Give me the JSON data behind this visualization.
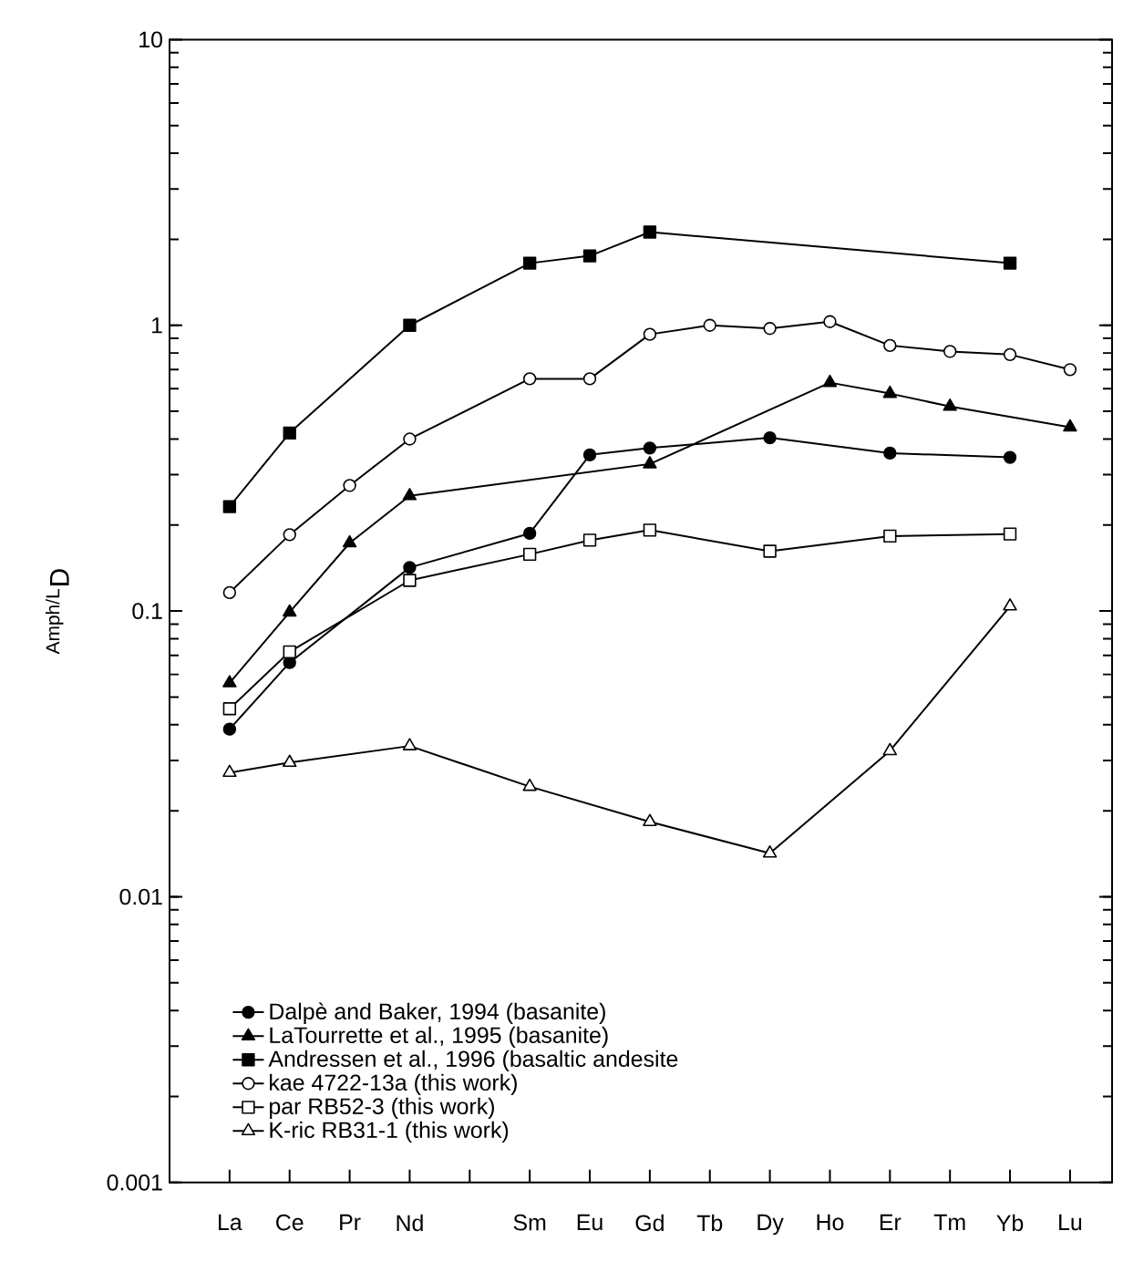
{
  "chart_data": {
    "type": "line",
    "ylabel": "$^{Amph/L}$D",
    "categories": [
      "La",
      "Ce",
      "Pr",
      "Nd",
      null,
      "Sm",
      "Eu",
      "Gd",
      "Tb",
      "Dy",
      "Ho",
      "Er",
      "Tm",
      "Yb",
      "Lu"
    ],
    "log": "y",
    "ylim": [
      0.001,
      10
    ],
    "yticks": [
      0.001,
      0.01,
      0.1,
      1,
      10
    ],
    "grid": false,
    "legend": "bottom left",
    "line_style": "solid",
    "series": [
      {
        "name": "Dalpè and Baker, 1994 (basanite)",
        "color": "#000000",
        "marker": "circle",
        "values": [
          0.0386,
          0.066,
          null,
          0.142,
          null,
          0.187,
          0.352,
          0.372,
          null,
          0.404,
          null,
          0.357,
          null,
          0.345,
          null
        ]
      },
      {
        "name": "LaTourrette et al., 1995 (basanite)",
        "color": "#000000",
        "marker": "triangle",
        "values": [
          0.056,
          0.099,
          0.173,
          0.253,
          null,
          null,
          null,
          0.327,
          null,
          null,
          0.63,
          0.577,
          0.52,
          null,
          0.44
        ]
      },
      {
        "name": "Andressen et al., 1996 (basaltic andesite",
        "color": "#000000",
        "marker": "square",
        "values": [
          0.232,
          0.42,
          null,
          1.0,
          null,
          1.65,
          1.75,
          2.12,
          null,
          null,
          null,
          null,
          null,
          1.65,
          null
        ]
      },
      {
        "name": "kae 4722-13a (this work)",
        "color": "#ffffff",
        "marker": "circle",
        "values": [
          0.116,
          0.185,
          0.275,
          0.4,
          null,
          0.65,
          0.65,
          0.93,
          1.0,
          0.975,
          1.03,
          0.85,
          0.81,
          0.79,
          0.7
        ]
      },
      {
        "name": "par RB52-3 (this work)",
        "color": "#ffffff",
        "marker": "square",
        "values": [
          0.0455,
          0.072,
          null,
          0.128,
          null,
          0.158,
          0.177,
          0.192,
          null,
          0.162,
          null,
          0.183,
          null,
          0.186,
          null
        ]
      },
      {
        "name": "K-ric RB31-1 (this work)",
        "color": "#ffffff",
        "marker": "triangle",
        "values": [
          0.0272,
          0.0295,
          null,
          0.0337,
          null,
          0.0243,
          null,
          0.0183,
          null,
          0.0142,
          null,
          0.0324,
          null,
          0.104,
          null
        ]
      }
    ]
  }
}
